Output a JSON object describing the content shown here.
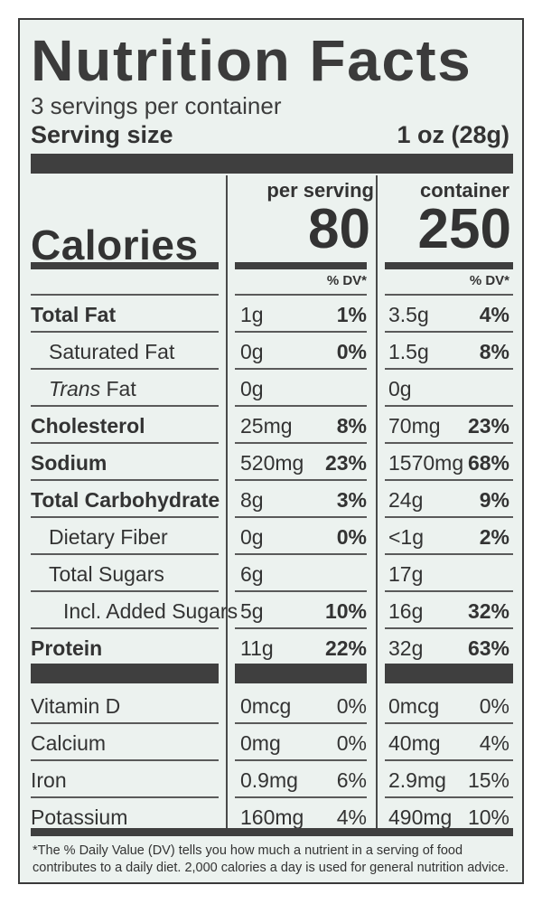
{
  "panel": {
    "title": "Nutrition Facts",
    "servings_per_container": "3 servings per container",
    "serving_size_label": "Serving size",
    "serving_size_value": "1 oz (28g)"
  },
  "columns": {
    "per_serving": "per serving",
    "container": "container",
    "dv_label": "% DV*"
  },
  "calories": {
    "label": "Calories",
    "per_serving": "80",
    "container": "250"
  },
  "nutrients": [
    {
      "label": "Total Fat",
      "style": "bold",
      "indent": 0,
      "s_amt": "1g",
      "s_dv": "1%",
      "c_amt": "3.5g",
      "c_dv": "4%"
    },
    {
      "label": "Saturated Fat",
      "style": "normal",
      "indent": 1,
      "s_amt": "0g",
      "s_dv": "0%",
      "c_amt": "1.5g",
      "c_dv": "8%"
    },
    {
      "label_italic": "Trans",
      "label_rest": " Fat",
      "style": "normal",
      "indent": 1,
      "s_amt": "0g",
      "s_dv": "",
      "c_amt": "0g",
      "c_dv": ""
    },
    {
      "label": "Cholesterol",
      "style": "bold",
      "indent": 0,
      "s_amt": "25mg",
      "s_dv": "8%",
      "c_amt": "70mg",
      "c_dv": "23%"
    },
    {
      "label": "Sodium",
      "style": "bold",
      "indent": 0,
      "s_amt": "520mg",
      "s_dv": "23%",
      "c_amt": "1570mg",
      "c_dv": "68%"
    },
    {
      "label": "Total Carbohydrate",
      "style": "bold",
      "indent": 0,
      "s_amt": "8g",
      "s_dv": "3%",
      "c_amt": "24g",
      "c_dv": "9%"
    },
    {
      "label": "Dietary Fiber",
      "style": "normal",
      "indent": 1,
      "s_amt": "0g",
      "s_dv": "0%",
      "c_amt": "<1g",
      "c_dv": "2%"
    },
    {
      "label": "Total Sugars",
      "style": "normal",
      "indent": 1,
      "s_amt": "6g",
      "s_dv": "",
      "c_amt": "17g",
      "c_dv": ""
    },
    {
      "label": "Incl. Added Sugars",
      "style": "normal",
      "indent": 2,
      "s_amt": "5g",
      "s_dv": "10%",
      "c_amt": "16g",
      "c_dv": "32%"
    },
    {
      "label": "Protein",
      "style": "bold",
      "indent": 0,
      "s_amt": "11g",
      "s_dv": "22%",
      "c_amt": "32g",
      "c_dv": "63%"
    }
  ],
  "vitamins": [
    {
      "label": "Vitamin D",
      "s_amt": "0mcg",
      "s_dv": "0%",
      "c_amt": "0mcg",
      "c_dv": "0%"
    },
    {
      "label": "Calcium",
      "s_amt": "0mg",
      "s_dv": "0%",
      "c_amt": "40mg",
      "c_dv": "4%"
    },
    {
      "label": "Iron",
      "s_amt": "0.9mg",
      "s_dv": "6%",
      "c_amt": "2.9mg",
      "c_dv": "15%"
    },
    {
      "label": "Potassium",
      "s_amt": "160mg",
      "s_dv": "4%",
      "c_amt": "490mg",
      "c_dv": "10%"
    }
  ],
  "footnote": "*The % Daily Value (DV) tells you how much a nutrient in a serving of food contributes to a daily diet. 2,000 calories a day is used for general nutrition advice.",
  "colors": {
    "panel_background": "#ecf2ef",
    "ink": "#333333",
    "rule": "#3f3f3f"
  }
}
